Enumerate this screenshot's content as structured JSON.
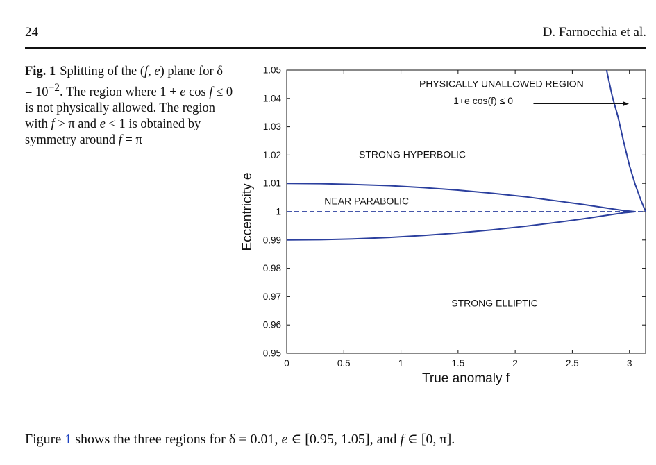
{
  "header": {
    "page_number": "24",
    "running_head": "D. Farnocchia et al."
  },
  "caption": {
    "label": "Fig. 1",
    "text_parts": [
      "Splitting of the (",
      "f",
      ", ",
      "e",
      ") plane for δ = 10",
      "−2",
      ". The region where 1 + ",
      "e",
      " cos ",
      "f",
      " ≤ 0 is not physically allowed. The region with ",
      "f",
      " > π and ",
      "e",
      " < 1 is obtained by symmetry around ",
      "f",
      " = π"
    ]
  },
  "body_text": {
    "prefix": "Figure ",
    "ref": "1",
    "rest_a": " shows the three regions for δ = 0.01, ",
    "e": "e",
    "rest_b": " ∈ [0.95, 1.05], and ",
    "f": "f",
    "rest_c": " ∈ [0, π]."
  },
  "chart_data": {
    "type": "line",
    "title": "",
    "xlabel": "True anomaly f",
    "ylabel": "Eccentricity e",
    "xlim": [
      0,
      3.14159
    ],
    "ylim": [
      0.95,
      1.05
    ],
    "x_ticks": [
      0,
      0.5,
      1,
      1.5,
      2,
      2.5,
      3
    ],
    "x_tick_labels": [
      "0",
      "0.5",
      "1",
      "1.5",
      "2",
      "2.5",
      "3"
    ],
    "y_ticks": [
      0.95,
      0.96,
      0.97,
      0.98,
      0.99,
      1,
      1.01,
      1.02,
      1.03,
      1.04,
      1.05
    ],
    "y_tick_labels": [
      "0.95",
      "0.96",
      "0.97",
      "0.98",
      "0.99",
      "1",
      "1.01",
      "1.02",
      "1.03",
      "1.04",
      "1.05"
    ],
    "grid": false,
    "line_color": "#2b3f9e",
    "series": [
      {
        "id": "upper",
        "style": "solid",
        "x": [
          0,
          0.3,
          0.6,
          0.9,
          1.2,
          1.5,
          1.8,
          2.1,
          2.4,
          2.6,
          2.8,
          2.95,
          3.0,
          3.05
        ],
        "y": [
          1.01,
          1.0099,
          1.0096,
          1.0092,
          1.0085,
          1.0076,
          1.0065,
          1.0052,
          1.0036,
          1.0025,
          1.0013,
          1.0004,
          1.0002,
          1.0
        ]
      },
      {
        "id": "lower",
        "style": "solid",
        "x": [
          0,
          0.3,
          0.6,
          0.9,
          1.2,
          1.5,
          1.8,
          2.1,
          2.4,
          2.6,
          2.8,
          2.95,
          3.0,
          3.05
        ],
        "y": [
          0.99,
          0.9901,
          0.9904,
          0.9909,
          0.9916,
          0.9925,
          0.9936,
          0.9949,
          0.9964,
          0.9975,
          0.9987,
          0.9996,
          0.9998,
          1.0
        ]
      },
      {
        "id": "boundary",
        "style": "solid",
        "x": [
          2.8,
          2.85,
          2.9,
          2.95,
          3.0,
          3.05,
          3.1,
          3.14159
        ],
        "y": [
          1.05,
          1.0407,
          1.0335,
          1.0246,
          1.0163,
          1.0097,
          1.0041,
          1.0
        ]
      },
      {
        "id": "parabolic",
        "style": "dashed",
        "x": [
          0,
          3.14159
        ],
        "y": [
          1.0,
          1.0
        ]
      }
    ],
    "annotations": [
      {
        "id": "unallowed",
        "text": "PHYSICALLY UNALLOWED REGION",
        "x": 1.88,
        "y": 1.044
      },
      {
        "id": "condition",
        "text": "1+e cos(f) ≤ 0",
        "x": 1.72,
        "y": 1.038
      },
      {
        "id": "hyperbolic",
        "text": "STRONG HYPERBOLIC",
        "x": 1.1,
        "y": 1.019
      },
      {
        "id": "near-parabolic",
        "text": "NEAR PARABOLIC",
        "x": 0.7,
        "y": 1.0026
      },
      {
        "id": "elliptic",
        "text": "STRONG ELLIPTIC",
        "x": 1.82,
        "y": 0.9665
      }
    ],
    "arrow": {
      "from": [
        2.16,
        1.0381
      ],
      "to": [
        2.99,
        1.0381
      ]
    }
  }
}
